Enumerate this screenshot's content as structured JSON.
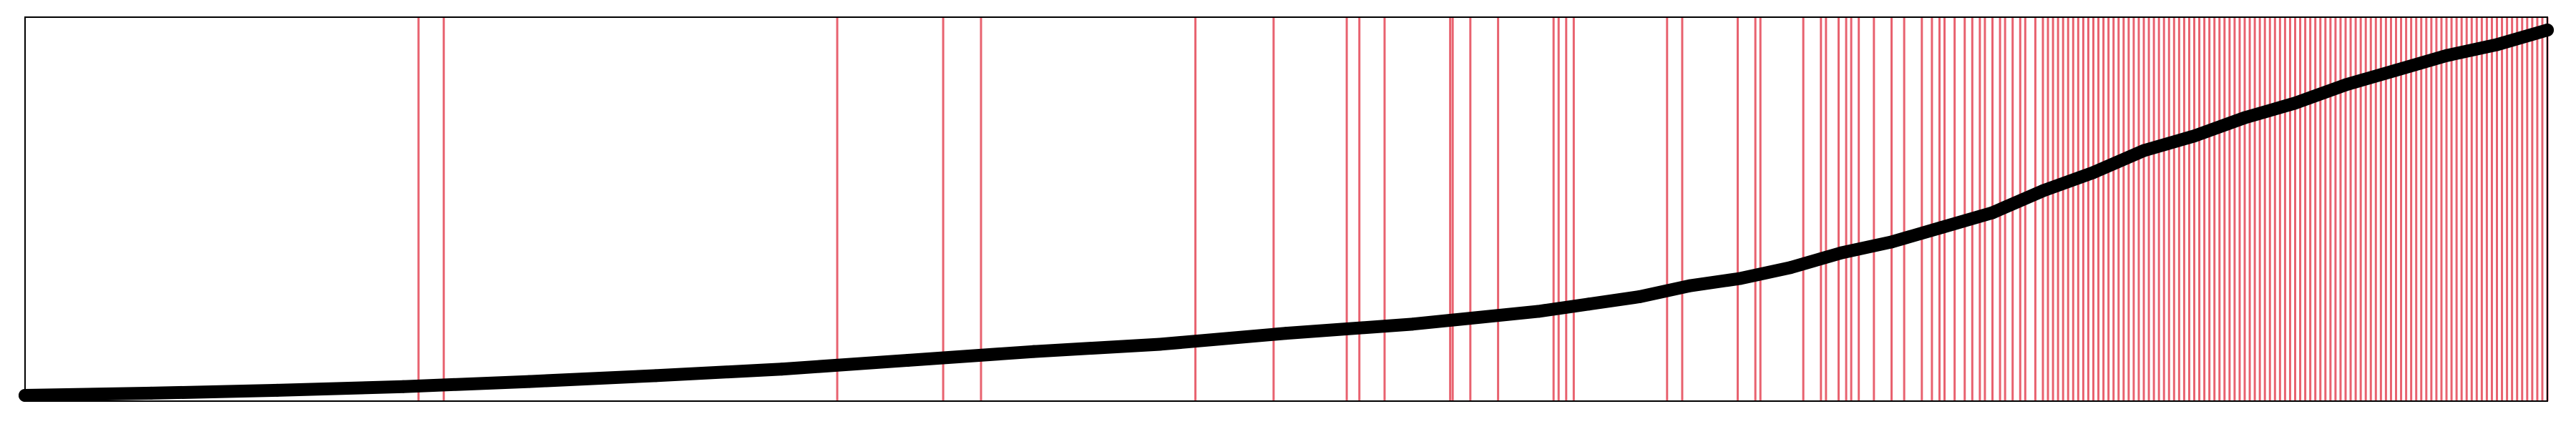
{
  "chart_data": {
    "type": "line",
    "title": "",
    "xlabel": "",
    "ylabel": "",
    "ticks_shown": false,
    "grid": false,
    "legend": "none",
    "colors": {
      "curve": "#000000",
      "events": "#e8626f",
      "frame": "#000000",
      "background": "#ffffff"
    },
    "xlim": [
      0,
      1000
    ],
    "ylim": [
      0,
      1
    ],
    "curve": {
      "x": [
        0,
        50,
        100,
        150,
        200,
        250,
        300,
        350,
        400,
        450,
        500,
        550,
        600,
        620,
        640,
        660,
        680,
        700,
        720,
        740,
        760,
        780,
        800,
        820,
        840,
        860,
        880,
        900,
        920,
        940,
        960,
        980,
        1000
      ],
      "y": [
        0.0,
        0.006,
        0.014,
        0.024,
        0.038,
        0.054,
        0.072,
        0.096,
        0.12,
        0.14,
        0.17,
        0.195,
        0.23,
        0.25,
        0.27,
        0.3,
        0.32,
        0.35,
        0.39,
        0.42,
        0.46,
        0.5,
        0.56,
        0.61,
        0.67,
        0.71,
        0.76,
        0.8,
        0.85,
        0.89,
        0.93,
        0.96,
        1.0
      ]
    },
    "events": [
      156,
      166,
      322,
      364,
      379,
      464,
      495,
      524,
      529,
      539,
      565,
      566,
      573,
      584,
      606,
      608,
      611,
      614,
      651,
      657,
      679,
      686,
      688,
      705,
      712,
      714,
      719,
      722,
      724,
      727,
      733,
      740,
      745,
      752,
      756,
      759,
      761,
      765,
      769,
      772,
      775,
      777,
      780,
      783,
      785,
      788,
      791,
      793,
      797,
      800,
      802,
      804,
      806,
      808,
      810,
      812,
      814,
      816,
      818,
      820,
      822,
      824,
      826,
      828,
      830,
      832,
      834,
      836,
      838,
      840,
      842,
      844,
      846,
      848,
      850,
      852,
      854,
      856,
      858,
      860,
      862,
      864,
      866,
      868,
      870,
      872,
      874,
      876,
      878,
      880,
      882,
      884,
      886,
      888,
      890,
      892,
      894,
      896,
      898,
      900,
      902,
      904,
      906,
      908,
      910,
      912,
      914,
      916,
      918,
      920,
      922,
      924,
      926,
      928,
      930,
      932,
      934,
      936,
      938,
      940,
      942,
      944,
      946,
      948,
      950,
      952,
      954,
      956,
      958,
      960,
      962,
      964,
      966,
      968,
      970,
      972,
      974,
      976,
      978,
      980,
      982,
      984,
      986,
      988,
      990,
      992,
      994,
      996,
      998,
      1000
    ]
  }
}
